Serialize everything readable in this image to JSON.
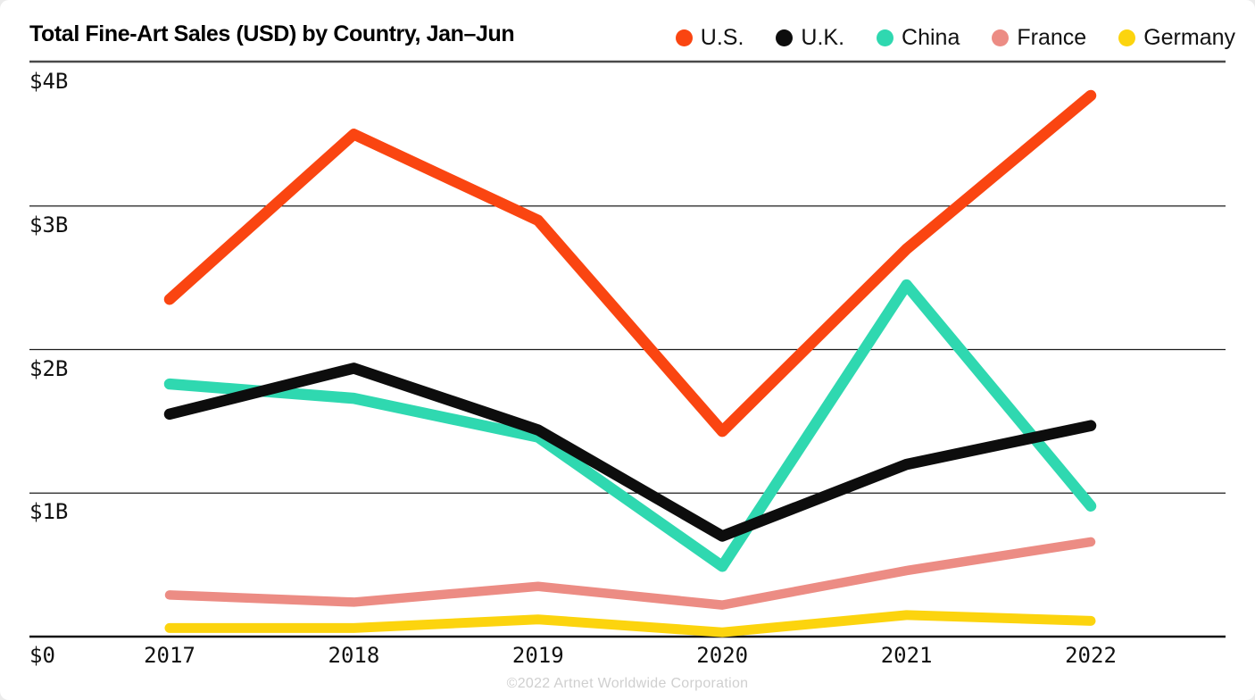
{
  "header": {
    "title": "Total Fine-Art Sales (USD) by Country, Jan–Jun"
  },
  "legend": {
    "items": [
      {
        "label": "U.S.",
        "color": "#FA4511"
      },
      {
        "label": "U.K.",
        "color": "#0D0D0D"
      },
      {
        "label": "China",
        "color": "#2FD8B0"
      },
      {
        "label": "France",
        "color": "#EC8C84"
      },
      {
        "label": "Germany",
        "color": "#FCD40E"
      }
    ]
  },
  "axes": {
    "y_tick_labels": [
      "$4B",
      "$3B",
      "$2B",
      "$1B",
      "$0"
    ],
    "y_tick_values": [
      4,
      3,
      2,
      1,
      0
    ],
    "x_tick_labels": [
      "2017",
      "2018",
      "2019",
      "2020",
      "2021",
      "2022"
    ]
  },
  "footer": {
    "copyright": "©2022 Artnet Worldwide Corporation"
  },
  "chart_data": {
    "type": "line",
    "title": "Total Fine-Art Sales (USD) by Country, Jan–Jun",
    "unit": "USD billions",
    "categories": [
      "2017",
      "2018",
      "2019",
      "2020",
      "2021",
      "2022"
    ],
    "series": [
      {
        "name": "U.S.",
        "color": "#FA4511",
        "values": [
          2.35,
          3.5,
          2.9,
          1.43,
          2.7,
          3.77
        ]
      },
      {
        "name": "U.K.",
        "color": "#0D0D0D",
        "values": [
          1.55,
          1.87,
          1.44,
          0.7,
          1.2,
          1.47
        ]
      },
      {
        "name": "China",
        "color": "#2FD8B0",
        "values": [
          1.76,
          1.66,
          1.39,
          0.49,
          2.45,
          0.91
        ]
      },
      {
        "name": "France",
        "color": "#EC8C84",
        "values": [
          0.29,
          0.24,
          0.35,
          0.22,
          0.46,
          0.66
        ]
      },
      {
        "name": "Germany",
        "color": "#FCD40E",
        "values": [
          0.06,
          0.06,
          0.12,
          0.03,
          0.15,
          0.11
        ]
      }
    ],
    "xlabel": "",
    "ylabel": "",
    "ylim": [
      0,
      4
    ],
    "y_gridlines": [
      1,
      2,
      3
    ],
    "grid": true,
    "legend_position": "top-right",
    "draw_order_hint": "reverse-legend-order (U.S. line on top)"
  }
}
